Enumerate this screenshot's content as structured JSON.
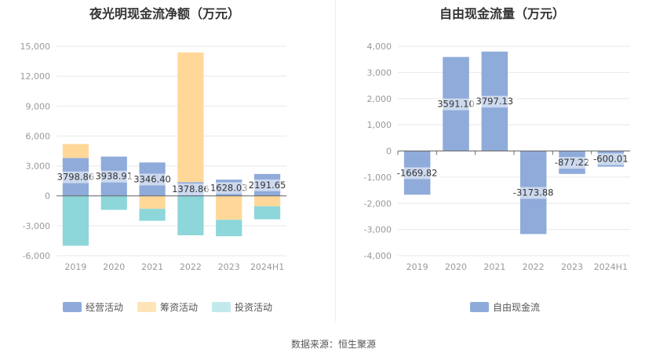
{
  "chart_data": [
    {
      "type": "bar",
      "stacked": true,
      "title": "夜光明现金流净额（万元）",
      "categories": [
        "2019",
        "2020",
        "2021",
        "2022",
        "2023",
        "2024H1"
      ],
      "ylim": [
        -6000,
        15000
      ],
      "yticks": [
        -6000,
        -3000,
        0,
        3000,
        6000,
        9000,
        12000,
        15000
      ],
      "ytick_labels": [
        "-6,000",
        "-3,000",
        "0",
        "3,000",
        "6,000",
        "9,000",
        "12,000",
        "15,000"
      ],
      "series": [
        {
          "name": "经营活动",
          "color": "#8fabda",
          "values": [
            3798.86,
            3938.91,
            3346.4,
            1378.86,
            1628.03,
            2191.65
          ]
        },
        {
          "name": "筹资活动",
          "color": "#ffd899",
          "values": [
            1400,
            0,
            -1300,
            13000,
            -2400,
            -1050
          ]
        },
        {
          "name": "投资活动",
          "color": "#8dd6da",
          "values": [
            -5000,
            -1400,
            -1200,
            -3950,
            -1650,
            -1300
          ]
        }
      ],
      "data_labels": [
        "3798.86",
        "3938.91",
        "3346.40",
        "1378.86",
        "1628.03",
        "2191.65"
      ],
      "legend": [
        {
          "name": "经营活动",
          "color": "#8fabda"
        },
        {
          "name": "筹资活动",
          "color": "#ffe4b8"
        },
        {
          "name": "投资活动",
          "color": "#c2eaec"
        }
      ]
    },
    {
      "type": "bar",
      "title": "自由现金流量（万元）",
      "categories": [
        "2019",
        "2020",
        "2021",
        "2022",
        "2023",
        "2024H1"
      ],
      "ylim": [
        -4000,
        4000
      ],
      "yticks": [
        -4000,
        -3000,
        -2000,
        -1000,
        0,
        1000,
        2000,
        3000,
        4000
      ],
      "ytick_labels": [
        "-4,000",
        "-3,000",
        "-2,000",
        "-1,000",
        "0",
        "1,000",
        "2,000",
        "3,000",
        "4,000"
      ],
      "series": [
        {
          "name": "自由现金流",
          "color": "#8fabda",
          "values": [
            -1669.82,
            3591.1,
            3797.13,
            -3173.88,
            -877.22,
            -600.01
          ]
        }
      ],
      "data_labels": [
        "-1669.82",
        "3591.10",
        "3797.13",
        "-3173.88",
        "-877.22",
        "-600.01"
      ],
      "legend": [
        {
          "name": "自由现金流",
          "color": "#8fabda"
        }
      ]
    }
  ],
  "footer": {
    "source": "数据来源：恒生聚源"
  }
}
